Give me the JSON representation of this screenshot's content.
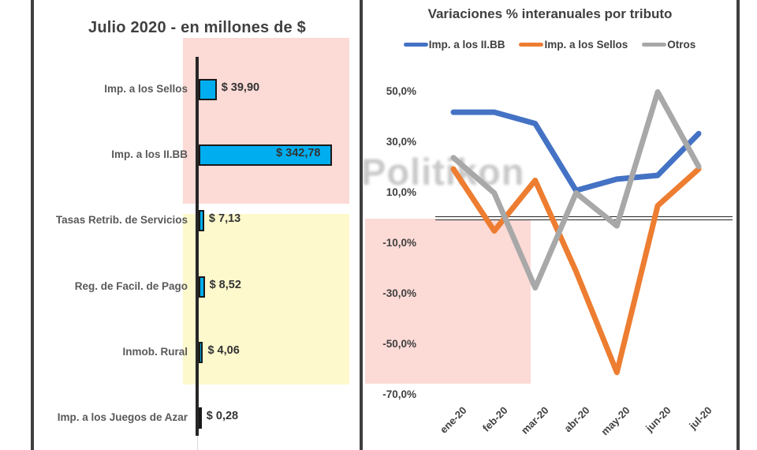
{
  "watermark": "Politikon",
  "chart_data": [
    {
      "type": "bar",
      "orientation": "horizontal",
      "title": "Julio 2020 - en millones de $",
      "categories": [
        "Imp. a los Sellos",
        "Imp. a los II.BB",
        "Tasas Retrib. de Servicios",
        "Reg. de Facil. de Pago",
        "Inmob. Rural",
        "Imp. a los Juegos de Azar"
      ],
      "values": [
        39.9,
        342.78,
        7.13,
        8.52,
        4.06,
        0.28
      ],
      "data_labels": [
        "$ 39,90",
        "$ 342,78",
        "$ 7,13",
        "$ 8,52",
        "$ 4,06",
        "$ 0,28"
      ],
      "xlabel": "",
      "ylabel": "",
      "xlim": [
        0,
        355
      ],
      "bar_color": "#00aeef",
      "bar_border_color": "#1a1a1a",
      "grid": false,
      "highlight_bands": [
        {
          "color": "#fcdad6",
          "covers": [
            "Imp. a los Sellos",
            "Imp. a los II.BB"
          ]
        },
        {
          "color": "#fdf9cd",
          "covers": [
            "Tasas Retrib. de Servicios",
            "Reg. de Facil. de Pago",
            "Inmob. Rural"
          ]
        }
      ]
    },
    {
      "type": "line",
      "title": "Variaciones % interanuales por tributo",
      "categories": [
        "ene-20",
        "feb-20",
        "mar-20",
        "abr-20",
        "may-20",
        "jun-20",
        "jul-20"
      ],
      "series": [
        {
          "name": "Imp. a los II.BB",
          "color": "#4472c4",
          "values": [
            42,
            42,
            37.5,
            11,
            15.5,
            17,
            33.5
          ]
        },
        {
          "name": "Imp. a los Sellos",
          "color": "#ed7d31",
          "values": [
            19.5,
            -5,
            15,
            -21,
            -61,
            5,
            19.5
          ]
        },
        {
          "name": "Otros",
          "color": "#a8a8a8",
          "values": [
            24,
            10,
            -27.5,
            10,
            -3,
            50,
            20.5
          ]
        }
      ],
      "y_ticks": [
        "50,0%",
        "30,0%",
        "10,0%",
        "-10,0%",
        "-30,0%",
        "-50,0%",
        "-70,0%"
      ],
      "ylim": [
        -70,
        55
      ],
      "grid": false,
      "zero_line": "double",
      "legend_position": "top",
      "x_tick_rotation_deg": 45,
      "highlight_band": {
        "color": "#fcdad6",
        "x_covers": [
          "ene-20",
          "mar-20"
        ],
        "y_covers": [
          0,
          -65
        ]
      }
    }
  ]
}
